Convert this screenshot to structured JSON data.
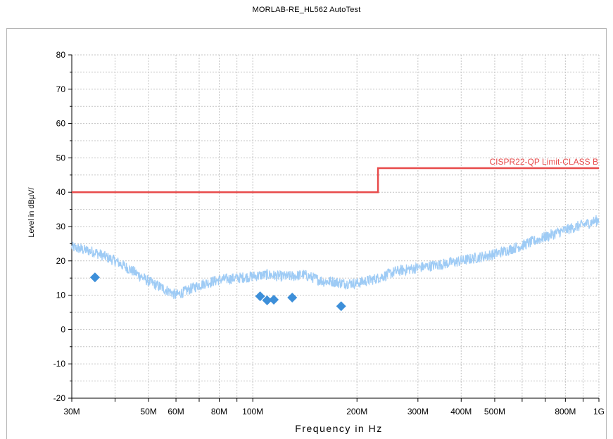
{
  "title": "MORLAB-RE_HL562 AutoTest",
  "chart_data": {
    "type": "line",
    "title": "MORLAB-RE_HL562 AutoTest",
    "xlabel": "Frequency in Hz",
    "ylabel": "Level in dBµV/",
    "x_scale": "log",
    "xlim": [
      30000000,
      1000000000
    ],
    "ylim": [
      -20,
      80
    ],
    "grid": true,
    "x_ticks": [
      {
        "value": 30000000,
        "label": "30M"
      },
      {
        "value": 50000000,
        "label": "50M"
      },
      {
        "value": 60000000,
        "label": "60M"
      },
      {
        "value": 80000000,
        "label": "80M"
      },
      {
        "value": 100000000,
        "label": "100M"
      },
      {
        "value": 200000000,
        "label": "200M"
      },
      {
        "value": 300000000,
        "label": "300M"
      },
      {
        "value": 400000000,
        "label": "400M"
      },
      {
        "value": 500000000,
        "label": "500M"
      },
      {
        "value": 800000000,
        "label": "800M"
      },
      {
        "value": 1000000000,
        "label": "1G"
      }
    ],
    "y_ticks": [
      {
        "value": 80,
        "label": "80"
      },
      {
        "value": 70,
        "label": "70"
      },
      {
        "value": 60,
        "label": "60"
      },
      {
        "value": 50,
        "label": "50"
      },
      {
        "value": 40,
        "label": "40"
      },
      {
        "value": 30,
        "label": "30"
      },
      {
        "value": 20,
        "label": "20"
      },
      {
        "value": 10,
        "label": "10"
      },
      {
        "value": 0,
        "label": "0"
      },
      {
        "value": -10,
        "label": "-10"
      },
      {
        "value": -20,
        "label": "-20"
      }
    ],
    "series": [
      {
        "name": "CISPR22-QP Limit-CLASS B",
        "kind": "step",
        "color": "#e84a4a",
        "x": [
          30000000,
          230000000,
          230000000,
          1000000000
        ],
        "y": [
          40,
          40,
          47,
          47
        ]
      },
      {
        "kind": "noise-band",
        "color": "#9ecbf5",
        "x": [
          30000000,
          35000000,
          40000000,
          45000000,
          50000000,
          55000000,
          60000000,
          65000000,
          70000000,
          80000000,
          90000000,
          100000000,
          110000000,
          120000000,
          130000000,
          140000000,
          150000000,
          160000000,
          170000000,
          180000000,
          200000000,
          230000000,
          260000000,
          300000000,
          350000000,
          400000000,
          500000000,
          600000000,
          700000000,
          800000000,
          900000000,
          1000000000
        ],
        "y": [
          24,
          22.5,
          20,
          17,
          14,
          12,
          10,
          11.5,
          13,
          14.5,
          15,
          15.5,
          16,
          15.5,
          15.5,
          16,
          15,
          14,
          14,
          13.5,
          13.5,
          15,
          17,
          18,
          19,
          20,
          22,
          24.5,
          27,
          29,
          30.5,
          32
        ]
      },
      {
        "kind": "markers",
        "color": "#3d8fd9",
        "x": [
          35000000,
          105000000,
          110000000,
          115000000,
          130000000,
          180000000
        ],
        "y": [
          15.2,
          9.7,
          8.5,
          8.7,
          9.3,
          6.8
        ]
      }
    ]
  }
}
